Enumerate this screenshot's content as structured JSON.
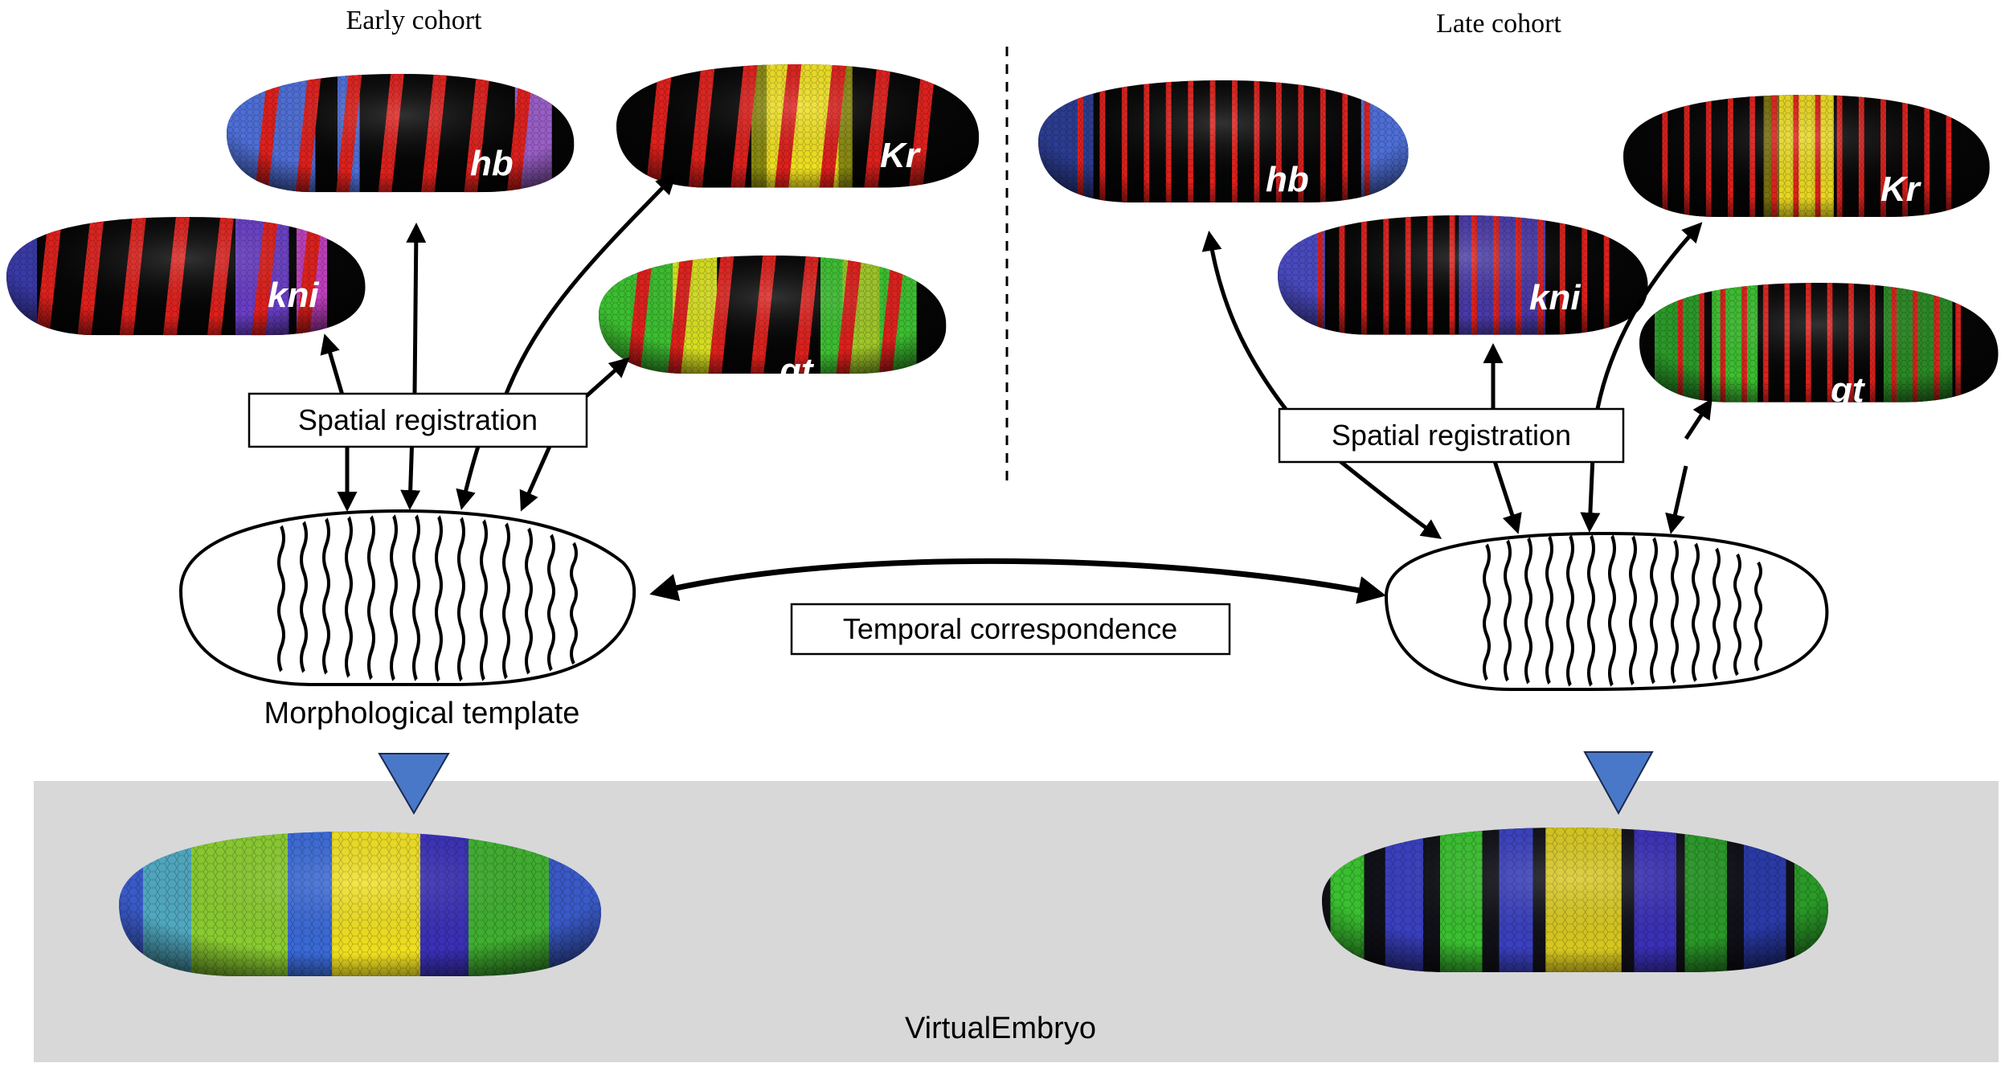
{
  "headers": {
    "early": "Early cohort",
    "late": "Late cohort"
  },
  "boxes": {
    "spatial_left": "Spatial registration",
    "spatial_right": "Spatial registration",
    "temporal": "Temporal correspondence"
  },
  "labels": {
    "morph_template": "Morphological template",
    "virtual_embryo": "VirtualEmbryo"
  },
  "genes": {
    "early": {
      "hb": "hb",
      "Kr": "Kr",
      "kni": "kni",
      "gt": "gt"
    },
    "late": {
      "hb": "hb",
      "Kr": "Kr",
      "kni": "kni",
      "gt": "gt"
    }
  },
  "colors": {
    "pair_rule_stripe": "#e0201c",
    "hb": "#4f6fd8",
    "Kr": "#f0e020",
    "kni": "#6a3fc8",
    "gt": "#3cc030",
    "virtual_panel": "#d8d8d8",
    "marker_triangle": "#4a78c8"
  }
}
